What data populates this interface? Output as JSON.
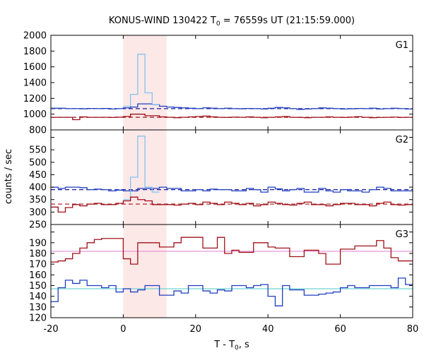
{
  "chart_data": {
    "type": "line",
    "title": "KONUS-WIND 130422 T",
    "title_sub": "0",
    "title_rest": " = 76559s UT (21:15:59.000)",
    "xlabel": "T - T",
    "xlabel_sub": "0",
    "xlabel_rest": ", s",
    "ylabel": "counts / sec",
    "xlim": [
      -20,
      80
    ],
    "xticks": [
      "-20",
      "0",
      "20",
      "40",
      "60",
      "80"
    ],
    "highlight": {
      "x0": 0,
      "x1": 12,
      "color": "#fde8e8"
    },
    "colors": {
      "g1_hi": "#7fc4ef",
      "blue": "#1f3fbf",
      "red": "#a01018",
      "bg_hi": "#1a1aa0",
      "bg_red": "#a01018",
      "pink": "#e58ad6",
      "cyan": "#6fd3d3"
    },
    "panels": [
      {
        "name": "G1",
        "ylim": [
          800,
          2000
        ],
        "yticks": [
          "800",
          "1000",
          "1200",
          "1400",
          "1600",
          "1800",
          "2000"
        ],
        "bg": [
          {
            "y": 1070,
            "color": "#1a1aa0",
            "dash": true
          },
          {
            "y": 960,
            "color": "#a01018",
            "dash": true
          }
        ],
        "series": [
          {
            "color": "#1f3fbf",
            "x0": -20,
            "step": 2,
            "values": [
              1075,
              1075,
              1070,
              1070,
              1068,
              1072,
              1070,
              1072,
              1065,
              1070,
              1080,
              1090,
              1130,
              1130,
              1120,
              1100,
              1090,
              1085,
              1080,
              1075,
              1070,
              1080,
              1075,
              1070,
              1075,
              1070,
              1068,
              1072,
              1070,
              1065,
              1075,
              1085,
              1080,
              1070,
              1060,
              1065,
              1070,
              1080,
              1075,
              1070,
              1065,
              1068,
              1072,
              1070,
              1075,
              1065,
              1070,
              1075,
              1070,
              1065
            ]
          },
          {
            "color": "#7fc4ef",
            "x0": -20,
            "step": 2,
            "values": [
              null,
              null,
              null,
              null,
              null,
              null,
              null,
              null,
              null,
              null,
              1100,
              1250,
              1760,
              1270,
              1120
            ]
          },
          {
            "color": "#a01018",
            "x0": -20,
            "step": 2,
            "values": [
              960,
              960,
              960,
              930,
              965,
              960,
              960,
              960,
              958,
              962,
              970,
              1000,
              1000,
              980,
              980,
              965,
              960,
              955,
              960,
              965,
              970,
              975,
              965,
              960,
              958,
              962,
              960,
              965,
              960,
              955,
              960,
              965,
              970,
              960,
              958,
              955,
              960,
              960,
              965,
              960,
              958,
              962,
              968,
              960,
              955,
              958,
              960,
              962,
              958,
              960
            ]
          }
        ]
      },
      {
        "name": "G2",
        "ylim": [
          250,
          630
        ],
        "yticks": [
          "250",
          "300",
          "350",
          "400",
          "450",
          "500",
          "550",
          "600"
        ],
        "bg": [
          {
            "y": 390,
            "color": "#1a1aa0",
            "dash": true
          },
          {
            "y": 332,
            "color": "#a01018",
            "dash": true
          }
        ],
        "series": [
          {
            "color": "#1f3fbf",
            "x0": -20,
            "step": 2,
            "values": [
              400,
              395,
              400,
              400,
              398,
              390,
              392,
              390,
              385,
              388,
              385,
              385,
              395,
              395,
              395,
              400,
              395,
              395,
              385,
              385,
              390,
              385,
              392,
              390,
              390,
              385,
              385,
              395,
              390,
              380,
              400,
              393,
              385,
              390,
              395,
              380,
              380,
              395,
              385,
              380,
              390,
              385,
              385,
              380,
              390,
              400,
              395,
              385,
              385,
              385
            ]
          },
          {
            "color": "#7fc4ef",
            "x0": -20,
            "step": 2,
            "values": [
              null,
              null,
              null,
              null,
              null,
              null,
              null,
              null,
              null,
              null,
              350,
              440,
              605,
              400,
              380
            ]
          },
          {
            "color": "#a01018",
            "x0": -20,
            "step": 2,
            "values": [
              320,
              300,
              318,
              330,
              325,
              332,
              335,
              330,
              330,
              335,
              345,
              360,
              350,
              345,
              330,
              330,
              330,
              328,
              332,
              335,
              330,
              340,
              335,
              330,
              340,
              335,
              330,
              335,
              325,
              330,
              340,
              335,
              330,
              328,
              335,
              340,
              330,
              330,
              325,
              330,
              335,
              335,
              330,
              330,
              325,
              335,
              340,
              330,
              328,
              330
            ]
          }
        ]
      },
      {
        "name": "G3",
        "ylim": [
          120,
          207
        ],
        "yticks": [
          "120",
          "130",
          "140",
          "150",
          "160",
          "170",
          "180",
          "190",
          "200"
        ],
        "bg": [
          {
            "y": 182,
            "color": "#e58ad6",
            "dash": false
          },
          {
            "y": 147,
            "color": "#6fd3d3",
            "dash": false
          }
        ],
        "series": [
          {
            "color": "#a01018",
            "x0": -20,
            "step": 2,
            "values": [
              172,
              173,
              175,
              180,
              185,
              190,
              193,
              194,
              194,
              194,
              175,
              170,
              190,
              190,
              190,
              186,
              186,
              190,
              195,
              195,
              195,
              185,
              185,
              195,
              180,
              183,
              181,
              181,
              190,
              190,
              186,
              185,
              185,
              177,
              177,
              183,
              183,
              180,
              170,
              170,
              184,
              184,
              187,
              187,
              187,
              192,
              185,
              176,
              173,
              173
            ]
          },
          {
            "color": "#1f3fbf",
            "x0": -20,
            "step": 2,
            "values": [
              135,
              148,
              155,
              152,
              155,
              150,
              150,
              148,
              150,
              144,
              147,
              144,
              146,
              150,
              150,
              141,
              141,
              145,
              143,
              150,
              150,
              145,
              143,
              146,
              145,
              150,
              150,
              148,
              150,
              151,
              140,
              131,
              150,
              146,
              146,
              141,
              141,
              142,
              143,
              144,
              148,
              150,
              148,
              148,
              150,
              150,
              150,
              148,
              157,
              151
            ]
          }
        ]
      }
    ]
  }
}
